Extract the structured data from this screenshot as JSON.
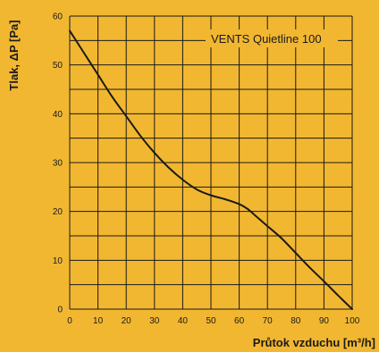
{
  "chart_data": {
    "type": "line",
    "title": "",
    "xlabel": "Průtok vzduchu [m³/h]",
    "ylabel": "Tlak, ΔP [Pa]",
    "xlim": [
      0,
      100
    ],
    "ylim": [
      0,
      60
    ],
    "grid": true,
    "x_ticks": [
      0,
      10,
      20,
      30,
      40,
      50,
      60,
      70,
      80,
      90,
      100
    ],
    "y_ticks": [
      0,
      10,
      20,
      30,
      40,
      50,
      60
    ],
    "x_tick_labels": [
      "0",
      "10",
      "20",
      "30",
      "40",
      "50",
      "60",
      "70",
      "80",
      "90",
      "100"
    ],
    "y_tick_labels": [
      "0",
      "10",
      "20",
      "30",
      "40",
      "50",
      "60"
    ],
    "annotation": "VENTS Quietline 100",
    "series": [
      {
        "name": "VENTS Quietline 100",
        "color": "#1a1a1a",
        "x": [
          0,
          5,
          10,
          15,
          20,
          25,
          30,
          35,
          40,
          45,
          50,
          55,
          60,
          63,
          66,
          70,
          75,
          80,
          85,
          90,
          95,
          100
        ],
        "y": [
          57,
          52.5,
          48,
          43.5,
          39.5,
          35.5,
          32,
          29,
          26.5,
          24.5,
          23.3,
          22.5,
          21.5,
          20.5,
          19,
          17,
          14.5,
          11.5,
          8.5,
          5.7,
          2.8,
          0
        ]
      }
    ]
  },
  "colors": {
    "background": "#f2b731",
    "ink": "#1a1a1a"
  }
}
